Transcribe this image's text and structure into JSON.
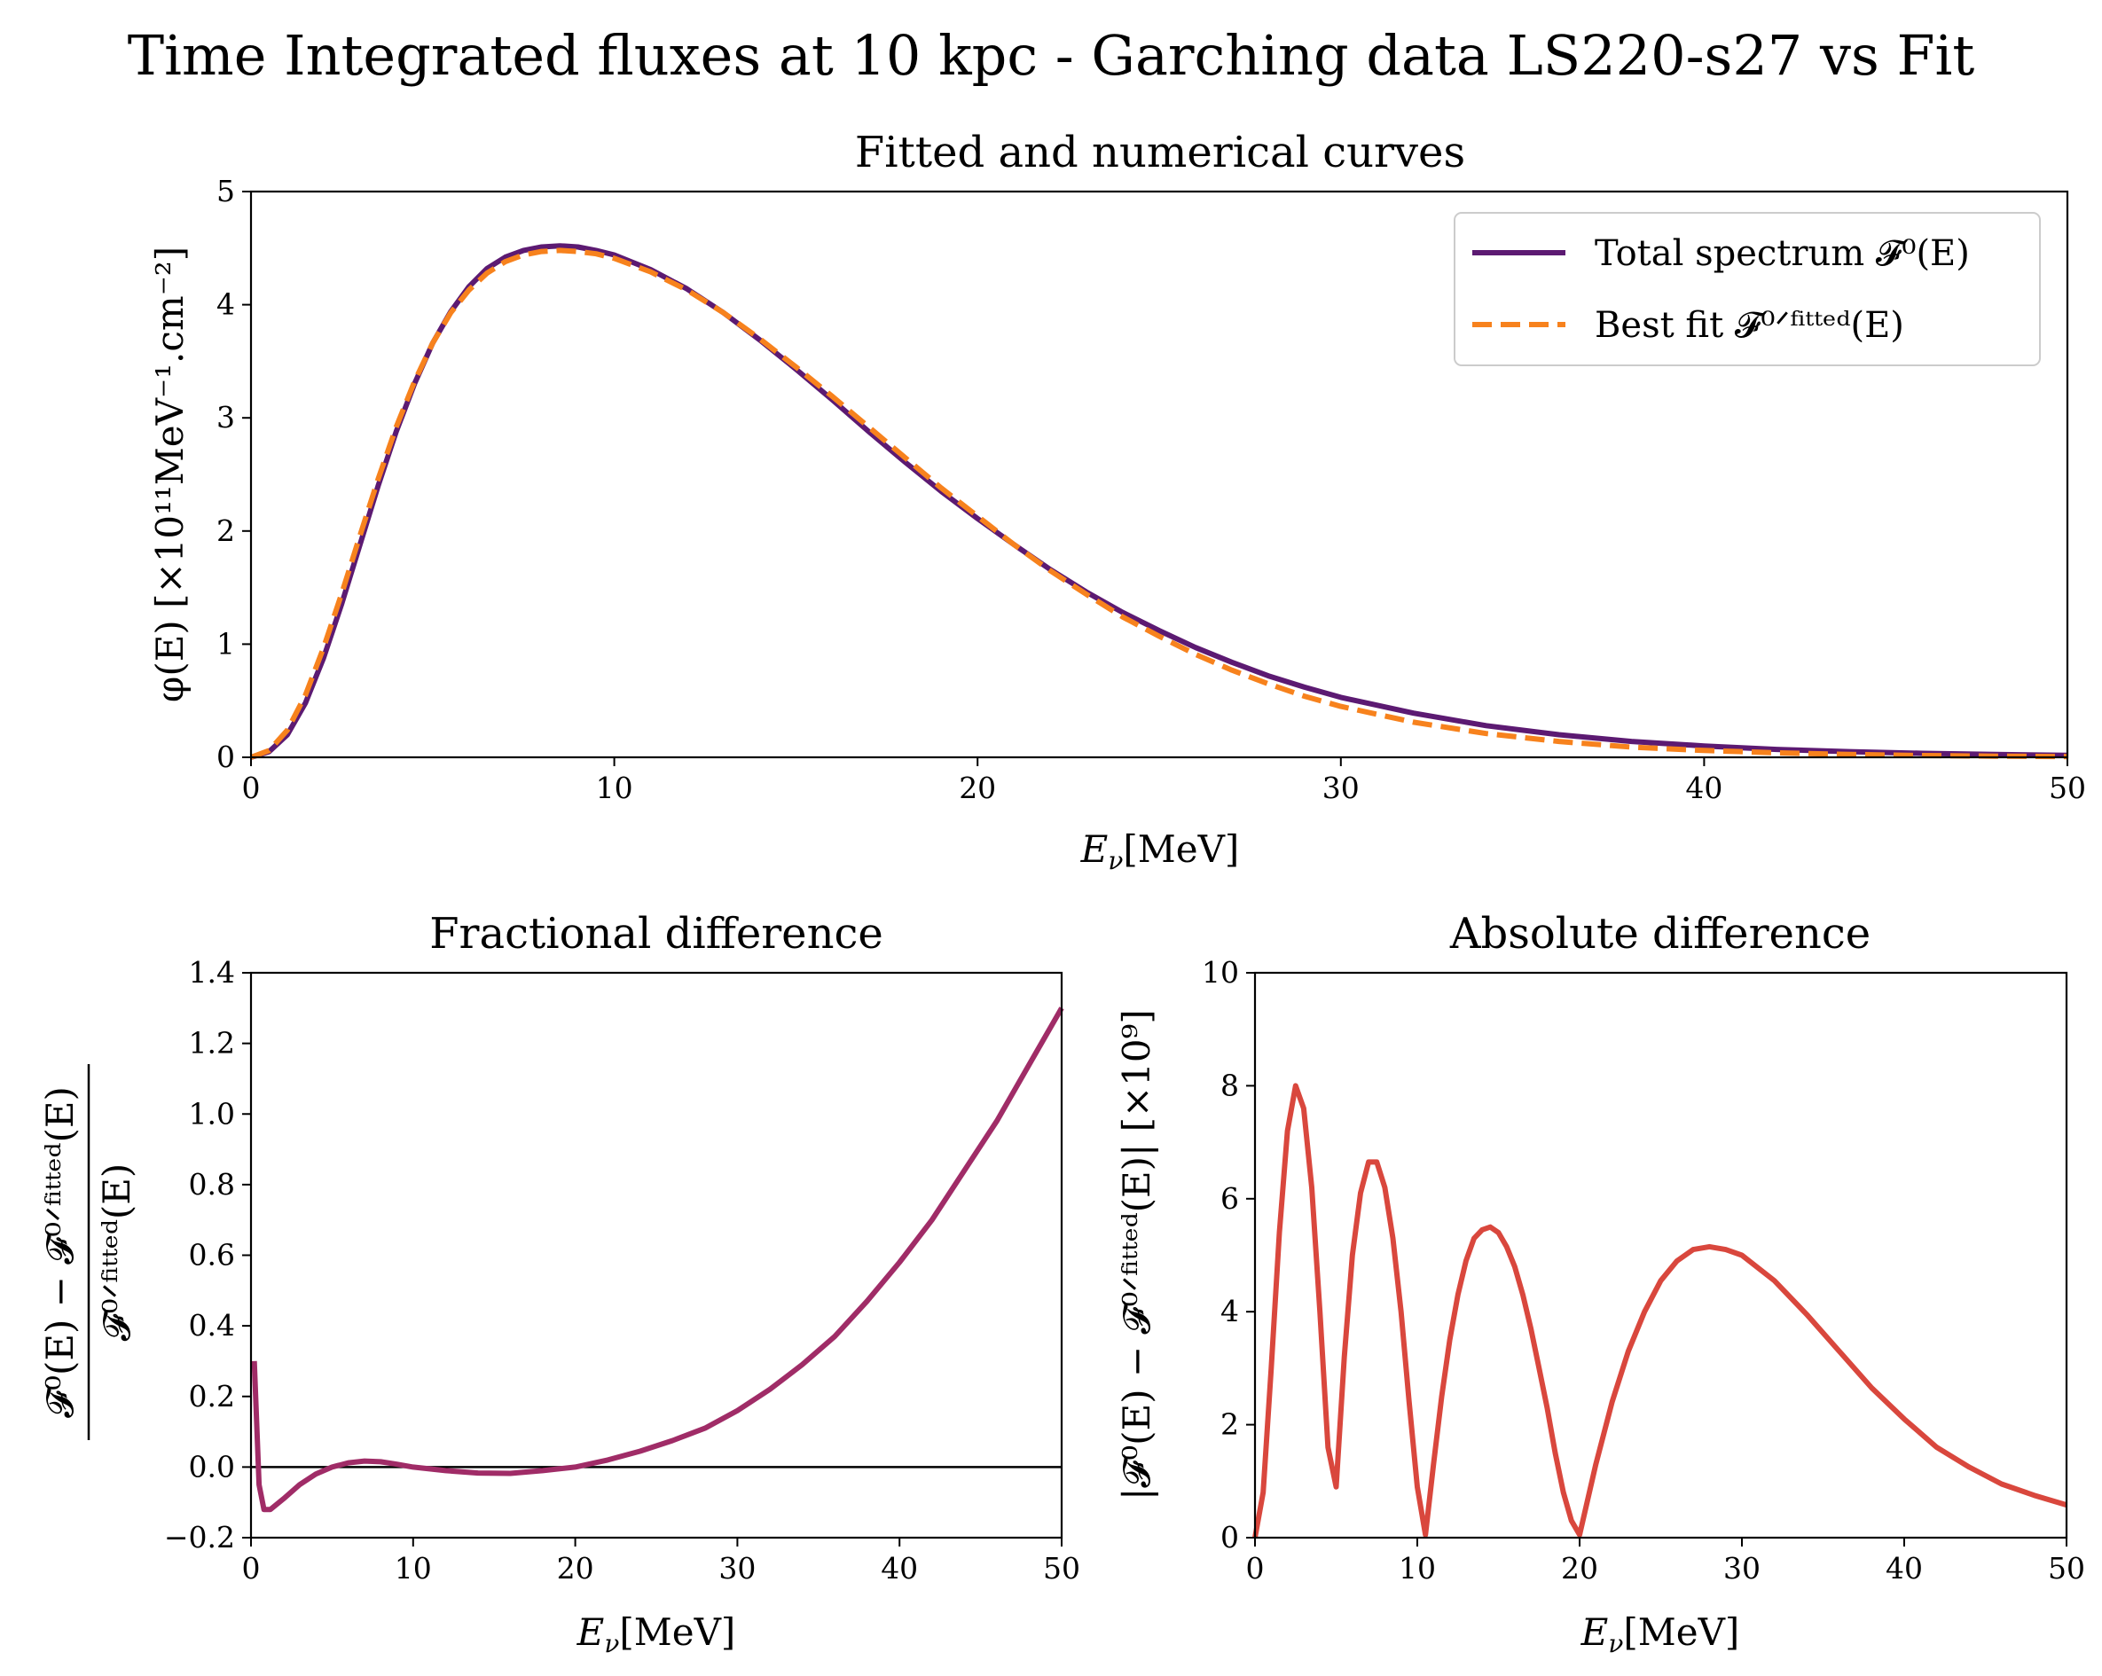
{
  "figure": {
    "suptitle": "Time Integrated fluxes at 10 kpc - Garching data LS220-s27 vs Fit"
  },
  "colors": {
    "total_spectrum": "#5c1a72",
    "best_fit": "#f7821d",
    "fractional": "#a02c67",
    "absolute": "#d9473d",
    "zero_line": "#000000"
  },
  "chart_data": [
    {
      "id": "fitted",
      "type": "line",
      "title": "Fitted and numerical curves",
      "xlabel": "Eν[MeV]",
      "ylabel": "φ(E) [×10¹¹MeV⁻¹.cm⁻²]",
      "xlim": [
        0,
        50
      ],
      "ylim": [
        0,
        5
      ],
      "xticks": [
        "0",
        "10",
        "20",
        "30",
        "40",
        "50"
      ],
      "yticks": [
        "0",
        "1",
        "2",
        "3",
        "4",
        "5"
      ],
      "legend_position": "upper right",
      "series": [
        {
          "name": "Total spectrum 𝓕⁰(E)",
          "style": "solid",
          "color_key": "total_spectrum",
          "x": [
            0,
            0.5,
            1,
            1.5,
            2,
            2.5,
            3,
            3.5,
            4,
            4.5,
            5,
            5.5,
            6,
            6.5,
            7,
            7.5,
            8,
            8.5,
            9,
            9.5,
            10,
            11,
            12,
            13,
            14,
            15,
            16,
            17,
            18,
            19,
            20,
            21,
            22,
            23,
            24,
            25,
            26,
            27,
            28,
            29,
            30,
            32,
            34,
            36,
            38,
            40,
            42,
            44,
            46,
            48,
            50
          ],
          "y": [
            0,
            0.05,
            0.2,
            0.48,
            0.88,
            1.36,
            1.88,
            2.4,
            2.88,
            3.3,
            3.66,
            3.94,
            4.16,
            4.32,
            4.42,
            4.48,
            4.51,
            4.52,
            4.51,
            4.48,
            4.44,
            4.31,
            4.14,
            3.93,
            3.69,
            3.43,
            3.16,
            2.88,
            2.61,
            2.35,
            2.11,
            1.88,
            1.66,
            1.46,
            1.28,
            1.12,
            0.97,
            0.84,
            0.72,
            0.62,
            0.53,
            0.39,
            0.28,
            0.2,
            0.14,
            0.1,
            0.07,
            0.05,
            0.035,
            0.025,
            0.018
          ]
        },
        {
          "name": "Best fit 𝓕⁰ᐟᶠⁱᵗᵗᵉᵈ(E)",
          "style": "dashed",
          "color_key": "best_fit",
          "x": [
            0,
            0.5,
            1,
            1.5,
            2,
            2.5,
            3,
            3.5,
            4,
            4.5,
            5,
            5.5,
            6,
            6.5,
            7,
            7.5,
            8,
            8.5,
            9,
            9.5,
            10,
            11,
            12,
            13,
            14,
            15,
            16,
            17,
            18,
            19,
            20,
            21,
            22,
            23,
            24,
            25,
            26,
            27,
            28,
            29,
            30,
            32,
            34,
            36,
            38,
            40,
            42,
            44,
            46,
            48,
            50
          ],
          "y": [
            0,
            0.06,
            0.24,
            0.55,
            0.97,
            1.45,
            1.96,
            2.46,
            2.92,
            3.32,
            3.66,
            3.93,
            4.13,
            4.28,
            4.38,
            4.44,
            4.47,
            4.48,
            4.47,
            4.45,
            4.41,
            4.29,
            4.13,
            3.93,
            3.7,
            3.45,
            3.19,
            2.92,
            2.65,
            2.38,
            2.13,
            1.88,
            1.65,
            1.44,
            1.24,
            1.07,
            0.91,
            0.77,
            0.65,
            0.54,
            0.45,
            0.31,
            0.21,
            0.14,
            0.09,
            0.06,
            0.04,
            0.025,
            0.016,
            0.01,
            0.006
          ]
        }
      ]
    },
    {
      "id": "fractional",
      "type": "line",
      "title": "Fractional difference",
      "xlabel": "Eν[MeV]",
      "ylabel_num": "𝓕⁰(E) − 𝓕⁰ᐟᶠⁱᵗᵗᵉᵈ(E)",
      "ylabel_den": "𝓕⁰ᐟᶠⁱᵗᵗᵉᵈ(E)",
      "xlim": [
        0,
        50
      ],
      "ylim": [
        -0.2,
        1.4
      ],
      "xticks": [
        "0",
        "10",
        "20",
        "30",
        "40",
        "50"
      ],
      "yticks": [
        "−0.2",
        "0.0",
        "0.2",
        "0.4",
        "0.6",
        "0.8",
        "1.0",
        "1.2",
        "1.4"
      ],
      "hline": 0,
      "series": [
        {
          "style": "solid",
          "color_key": "fractional",
          "x": [
            0.2,
            0.5,
            0.8,
            1.2,
            2,
            3,
            4,
            5,
            6,
            7,
            8,
            9,
            10,
            12,
            14,
            16,
            18,
            20,
            22,
            24,
            26,
            28,
            30,
            32,
            34,
            36,
            38,
            40,
            42,
            44,
            46,
            48,
            50
          ],
          "y": [
            0.3,
            -0.05,
            -0.12,
            -0.12,
            -0.09,
            -0.05,
            -0.02,
            0.0,
            0.012,
            0.017,
            0.015,
            0.008,
            0.0,
            -0.01,
            -0.017,
            -0.018,
            -0.01,
            0.0,
            0.02,
            0.045,
            0.075,
            0.11,
            0.16,
            0.22,
            0.29,
            0.37,
            0.47,
            0.58,
            0.7,
            0.84,
            0.98,
            1.14,
            1.3
          ]
        }
      ]
    },
    {
      "id": "absolute",
      "type": "line",
      "title": "Absolute difference",
      "xlabel": "Eν[MeV]",
      "ylabel": "|𝓕⁰(E) − 𝓕⁰ᐟᶠⁱᵗᵗᵉᵈ(E)| [×10⁹]",
      "xlim": [
        0,
        50
      ],
      "ylim": [
        0,
        10
      ],
      "xticks": [
        "0",
        "10",
        "20",
        "30",
        "40",
        "50"
      ],
      "yticks": [
        "0",
        "2",
        "4",
        "6",
        "8",
        "10"
      ],
      "series": [
        {
          "style": "solid",
          "color_key": "absolute",
          "x": [
            0,
            0.5,
            1,
            1.5,
            2,
            2.5,
            3,
            3.5,
            4,
            4.5,
            5,
            5.5,
            6,
            6.5,
            7,
            7.5,
            8,
            8.5,
            9,
            9.5,
            10,
            10.5,
            11,
            11.5,
            12,
            12.5,
            13,
            13.5,
            14,
            14.5,
            15,
            15.5,
            16,
            16.5,
            17,
            17.5,
            18,
            18.5,
            19,
            19.5,
            20,
            21,
            22,
            23,
            24,
            25,
            26,
            27,
            28,
            29,
            30,
            32,
            34,
            36,
            38,
            40,
            42,
            44,
            46,
            48,
            50
          ],
          "y": [
            0,
            0.8,
            3,
            5.4,
            7.2,
            8.0,
            7.6,
            6.2,
            4.0,
            1.6,
            0.9,
            3.2,
            5,
            6.1,
            6.65,
            6.65,
            6.2,
            5.3,
            4.0,
            2.4,
            0.9,
            0.05,
            1.3,
            2.5,
            3.5,
            4.3,
            4.9,
            5.3,
            5.45,
            5.5,
            5.4,
            5.15,
            4.8,
            4.3,
            3.7,
            3.0,
            2.3,
            1.5,
            0.8,
            0.3,
            0.05,
            1.3,
            2.4,
            3.3,
            4.0,
            4.55,
            4.9,
            5.1,
            5.15,
            5.1,
            5.0,
            4.55,
            3.95,
            3.3,
            2.65,
            2.1,
            1.6,
            1.25,
            0.95,
            0.75,
            0.58
          ]
        }
      ]
    }
  ]
}
